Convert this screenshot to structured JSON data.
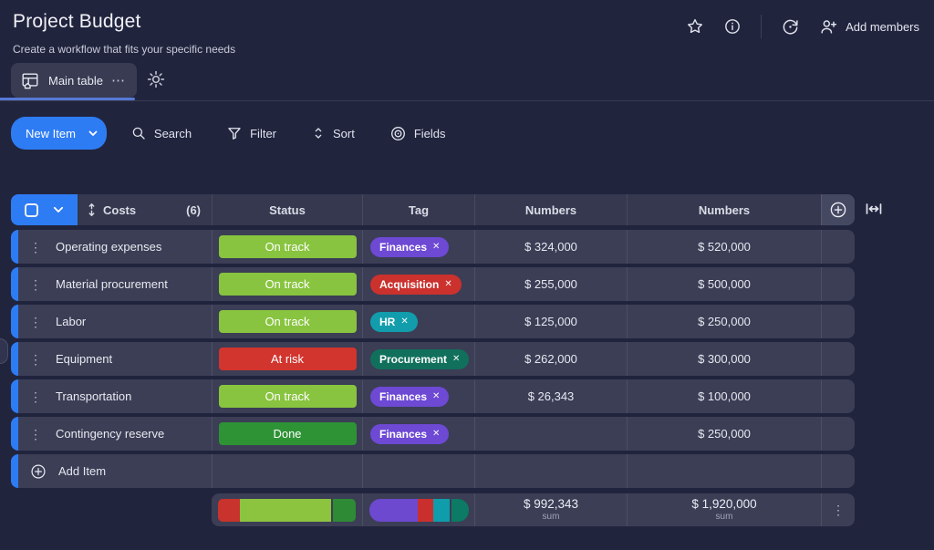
{
  "header": {
    "title": "Project Budget",
    "subtitle": "Create a workflow that fits your specific needs",
    "add_members_label": "Add members",
    "icons": [
      "star-icon",
      "info-icon",
      "sync-icon",
      "person-add-icon"
    ]
  },
  "tabs": {
    "main_table_label": "Main table",
    "icons": [
      "table-home-icon",
      "ellipsis-icon",
      "gear-icon"
    ]
  },
  "toolbar": {
    "new_item_label": "New Item",
    "search_label": "Search",
    "filter_label": "Filter",
    "sort_label": "Sort",
    "fields_label": "Fields",
    "icons": [
      "caret-down-icon",
      "search-icon",
      "filter-icon",
      "sort-icon",
      "eye-icon"
    ]
  },
  "glyphs": {
    "kebab": "⋮",
    "ellipsis": "⋯",
    "tag_close": "✕"
  },
  "colors": {
    "accent_blue": "#2e7cf4",
    "on_track": "#88c43f",
    "done": "#2e9335",
    "at_risk": "#d2342e",
    "tag_purple": "#6d49d4",
    "tag_red": "#cb312d",
    "tag_teal": "#129dac",
    "tag_dark_teal": "#10705c"
  },
  "table": {
    "columns": {
      "name_label": "Costs",
      "count": "(6)",
      "status": "Status",
      "tag": "Tag",
      "numbers1": "Numbers",
      "numbers2": "Numbers"
    },
    "rows": [
      {
        "name": "Operating expenses",
        "status": {
          "label": "On track",
          "color": "#88c43f"
        },
        "tag": {
          "label": "Finances",
          "color": "#6d49d4"
        },
        "num1": "$ 324,000",
        "num2": "$ 520,000"
      },
      {
        "name": "Material procurement",
        "status": {
          "label": "On track",
          "color": "#88c43f"
        },
        "tag": {
          "label": "Acquisition",
          "color": "#cb312d"
        },
        "num1": "$ 255,000",
        "num2": "$ 500,000"
      },
      {
        "name": "Labor",
        "status": {
          "label": "On track",
          "color": "#88c43f"
        },
        "tag": {
          "label": "HR",
          "color": "#129dac"
        },
        "num1": "$ 125,000",
        "num2": "$ 250,000"
      },
      {
        "name": "Equipment",
        "status": {
          "label": "At risk",
          "color": "#d2342e"
        },
        "tag": {
          "label": "Procurement",
          "color": "#10705c"
        },
        "num1": "$ 262,000",
        "num2": "$ 300,000"
      },
      {
        "name": "Transportation",
        "status": {
          "label": "On track",
          "color": "#88c43f"
        },
        "tag": {
          "label": "Finances",
          "color": "#6d49d4"
        },
        "num1": "$ 26,343",
        "num2": "$ 100,000"
      },
      {
        "name": "Contingency reserve",
        "status": {
          "label": "Done",
          "color": "#2e9335"
        },
        "tag": {
          "label": "Finances",
          "color": "#6d49d4"
        },
        "num1": "",
        "num2": "$ 250,000"
      }
    ],
    "add_item_label": "Add Item",
    "footer": {
      "status_bar": [
        {
          "color": "#c8332d",
          "pct": 16
        },
        {
          "color": "#8cc440",
          "pct": 67,
          "gap_after": true
        },
        {
          "color": "#2e8a35",
          "pct": 17
        }
      ],
      "tag_bar": [
        {
          "color": "#6d49cf",
          "pct": 50
        },
        {
          "color": "#c9302d",
          "pct": 16
        },
        {
          "color": "#0f9cab",
          "pct": 17,
          "gap_after": true
        },
        {
          "color": "#0c7a64",
          "pct": 17
        }
      ],
      "sum1": {
        "value": "$ 992,343",
        "label": "sum"
      },
      "sum2": {
        "value": "$ 1,920,000",
        "label": "sum"
      }
    }
  }
}
